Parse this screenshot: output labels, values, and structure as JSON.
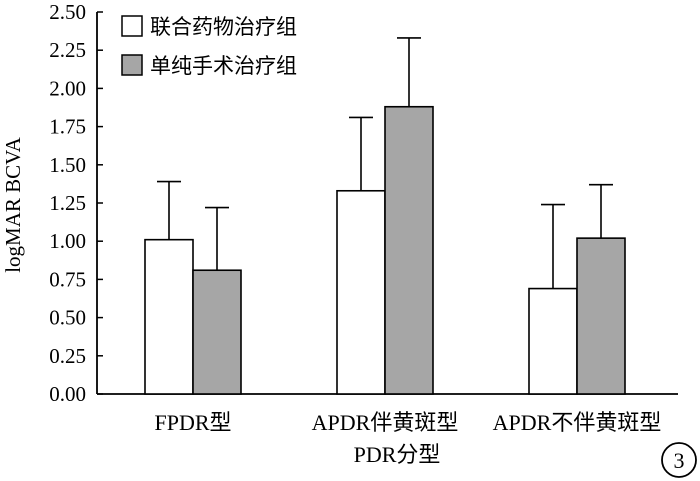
{
  "chart_data": {
    "type": "bar",
    "title": "",
    "xlabel": "PDR分型",
    "ylabel": "logMAR BCVA",
    "ylim": [
      0,
      2.5
    ],
    "yticks": [
      "0.00",
      "0.25",
      "0.50",
      "0.75",
      "1.00",
      "1.25",
      "1.50",
      "1.75",
      "2.00",
      "2.25",
      "2.50"
    ],
    "categories": [
      "FPDR型",
      "APDR伴黄斑型",
      "APDR不伴黄斑型"
    ],
    "series": [
      {
        "name": "联合药物治疗组",
        "values": [
          1.01,
          1.33,
          0.69
        ],
        "error": [
          0.38,
          0.48,
          0.55
        ],
        "color": "#ffffff"
      },
      {
        "name": "单纯手术治疗组",
        "values": [
          0.81,
          1.88,
          1.02
        ],
        "error": [
          0.41,
          0.45,
          0.35
        ],
        "color": "#a6a6a6"
      }
    ],
    "legend_position": "top-left",
    "grid": false
  },
  "panel_label": "3"
}
